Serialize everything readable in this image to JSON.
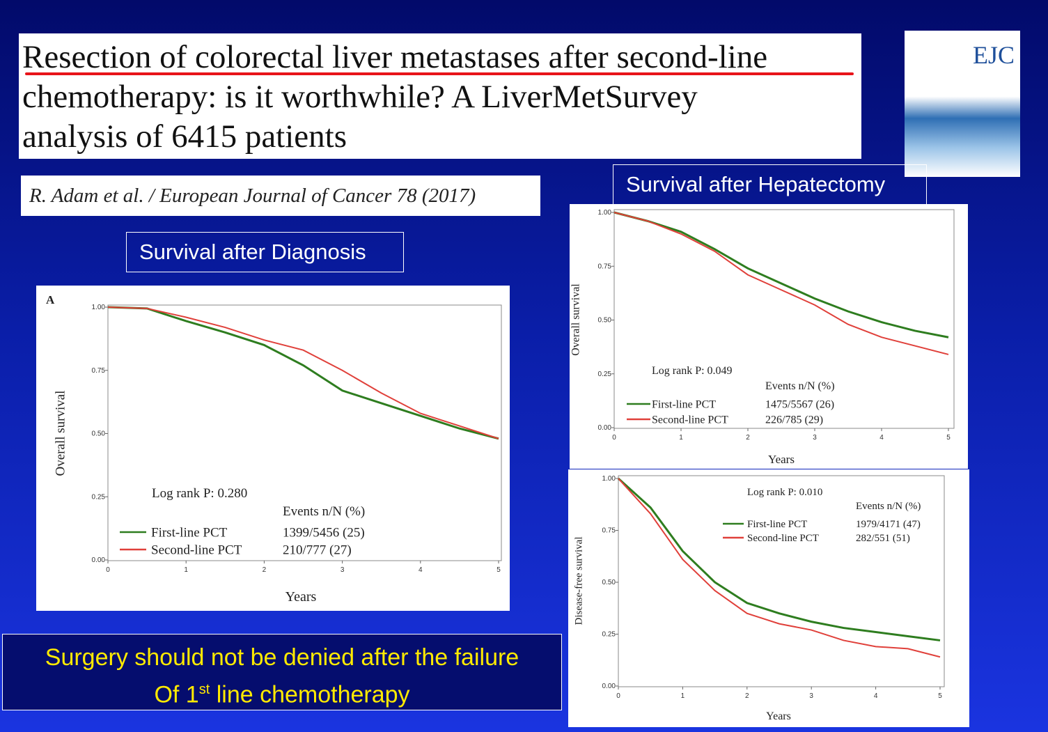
{
  "slide": {
    "title_lines": [
      "Resection of colorectal liver metastases after second-line",
      "chemotherapy: is it worthwhile? A LiverMetSurvey",
      "analysis of 6415 patients"
    ],
    "citation": "R. Adam et al. / European Journal of Cancer  78 (2017)",
    "journal": "EJC",
    "box_diagnosis": "Survival after Diagnosis",
    "box_hepatectomy": "Survival after Hepatectomy",
    "conclusion_line1": "Surgery should not be denied after the failure",
    "conclusion_line2": [
      "Of 1",
      "st",
      " line chemotherapy"
    ]
  },
  "chart_data": [
    {
      "type": "line",
      "panel_label": "A",
      "ylabel": "Overall survival",
      "xlabel": "Years",
      "annotation": "Log rank P: 0.280",
      "events_title": "Events n/N (%)",
      "x": [
        0,
        0.5,
        1,
        1.5,
        2,
        2.5,
        3,
        3.5,
        4,
        4.5,
        5
      ],
      "series": [
        {
          "name": "First-line PCT",
          "events": "1399/5456 (25)",
          "color": "#2e7d1f",
          "values": [
            1,
            0.995,
            0.945,
            0.9,
            0.85,
            0.77,
            0.67,
            0.62,
            0.57,
            0.52,
            0.48
          ]
        },
        {
          "name": "Second-line PCT",
          "events": "210/777 (27)",
          "color": "#e0403a",
          "values": [
            1,
            0.995,
            0.96,
            0.92,
            0.87,
            0.83,
            0.75,
            0.66,
            0.58,
            0.53,
            0.48
          ]
        }
      ],
      "xlim": [
        0,
        5
      ],
      "xticks": [
        0,
        1,
        2,
        3,
        4,
        5
      ],
      "ylim": [
        0,
        1
      ],
      "yticks": [
        {
          "value": 0,
          "label": "0.00"
        },
        {
          "value": 0.25,
          "label": "0.25"
        },
        {
          "value": 0.5,
          "label": "0.50"
        },
        {
          "value": 0.75,
          "label": "0.75"
        },
        {
          "value": 1,
          "label": "1.00"
        }
      ]
    },
    {
      "type": "line",
      "ylabel": "Overall survival",
      "xlabel": "Years",
      "annotation": "Log rank P: 0.049",
      "events_title": "Events n/N (%)",
      "x": [
        0,
        0.5,
        1,
        1.5,
        2,
        2.5,
        3,
        3.5,
        4,
        4.5,
        5
      ],
      "series": [
        {
          "name": "First-line PCT",
          "events": "1475/5567 (26)",
          "color": "#2e7d1f",
          "values": [
            1,
            0.96,
            0.91,
            0.83,
            0.74,
            0.67,
            0.6,
            0.54,
            0.49,
            0.45,
            0.42
          ]
        },
        {
          "name": "Second-line PCT",
          "events": "226/785 (29)",
          "color": "#e0403a",
          "values": [
            1,
            0.96,
            0.9,
            0.82,
            0.71,
            0.64,
            0.57,
            0.48,
            0.42,
            0.38,
            0.34
          ]
        }
      ],
      "xlim": [
        0,
        5
      ],
      "xticks": [
        0,
        1,
        2,
        3,
        4,
        5
      ],
      "ylim": [
        0,
        1
      ],
      "yticks": [
        {
          "value": 0,
          "label": "0.00"
        },
        {
          "value": 0.25,
          "label": "0.25"
        },
        {
          "value": 0.5,
          "label": "0.50"
        },
        {
          "value": 0.75,
          "label": "0.75"
        },
        {
          "value": 1,
          "label": "1.00"
        }
      ]
    },
    {
      "type": "line",
      "ylabel": "Disease-free survival",
      "xlabel": "Years",
      "annotation": "Log rank P: 0.010",
      "events_title": "Events n/N (%)",
      "x": [
        0,
        0.5,
        1,
        1.5,
        2,
        2.5,
        3,
        3.5,
        4,
        4.5,
        5
      ],
      "series": [
        {
          "name": "First-line PCT",
          "events": "1979/4171 (47)",
          "color": "#2e7d1f",
          "values": [
            1,
            0.86,
            0.65,
            0.5,
            0.4,
            0.35,
            0.31,
            0.28,
            0.26,
            0.24,
            0.22
          ]
        },
        {
          "name": "Second-line PCT",
          "events": "282/551 (51)",
          "color": "#e0403a",
          "values": [
            1,
            0.83,
            0.61,
            0.46,
            0.35,
            0.3,
            0.27,
            0.22,
            0.19,
            0.18,
            0.14
          ]
        }
      ],
      "xlim": [
        0,
        5
      ],
      "xticks": [
        0,
        1,
        2,
        3,
        4,
        5
      ],
      "ylim": [
        0,
        1
      ],
      "yticks": [
        {
          "value": 0,
          "label": "0.00"
        },
        {
          "value": 0.25,
          "label": "0.25"
        },
        {
          "value": 0.5,
          "label": "0.50"
        },
        {
          "value": 0.75,
          "label": "0.75"
        },
        {
          "value": 1,
          "label": "1.00"
        }
      ]
    }
  ]
}
